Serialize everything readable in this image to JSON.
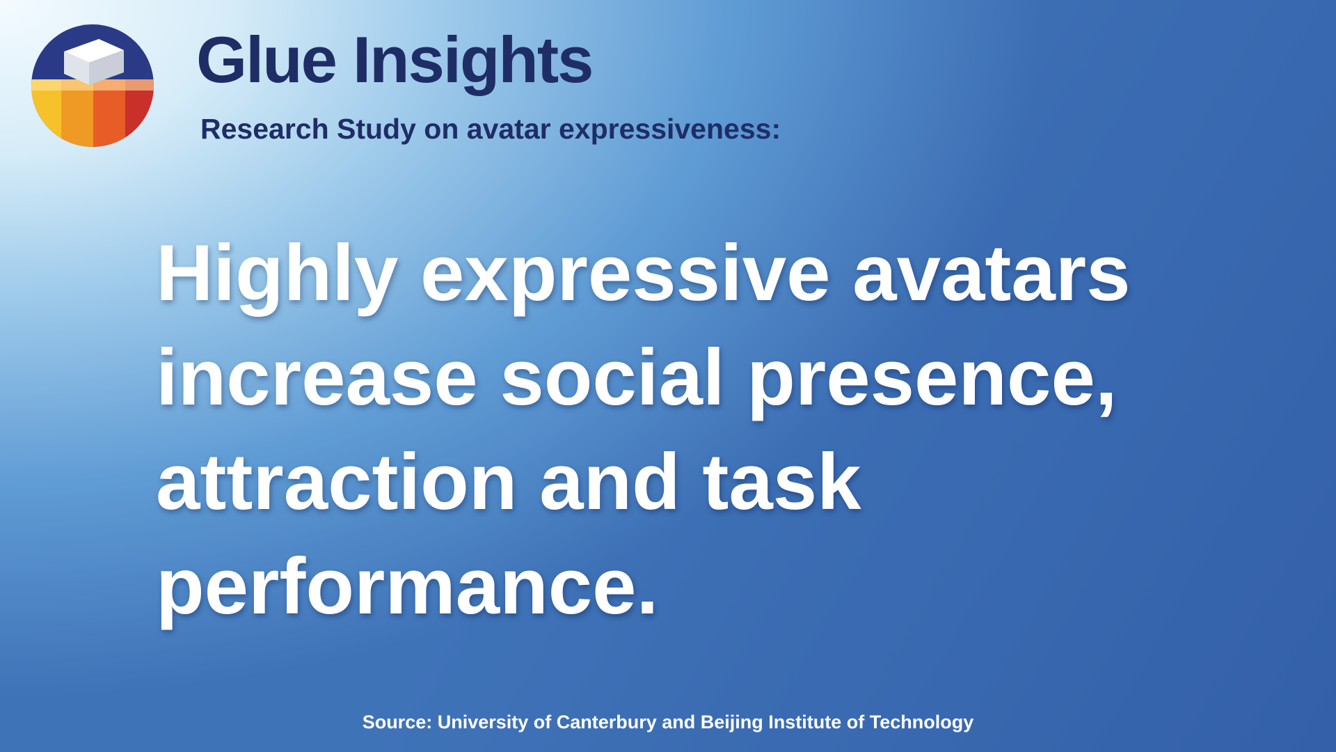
{
  "header": {
    "title": "Glue Insights",
    "subtitle": "Research Study on avatar expressiveness:"
  },
  "headline": {
    "lines": [
      "Highly expressive avatars",
      "increase social presence,",
      "attraction and task",
      "performance."
    ]
  },
  "source": "Source: University of Canterbury and Beijing Institute of Technology"
}
